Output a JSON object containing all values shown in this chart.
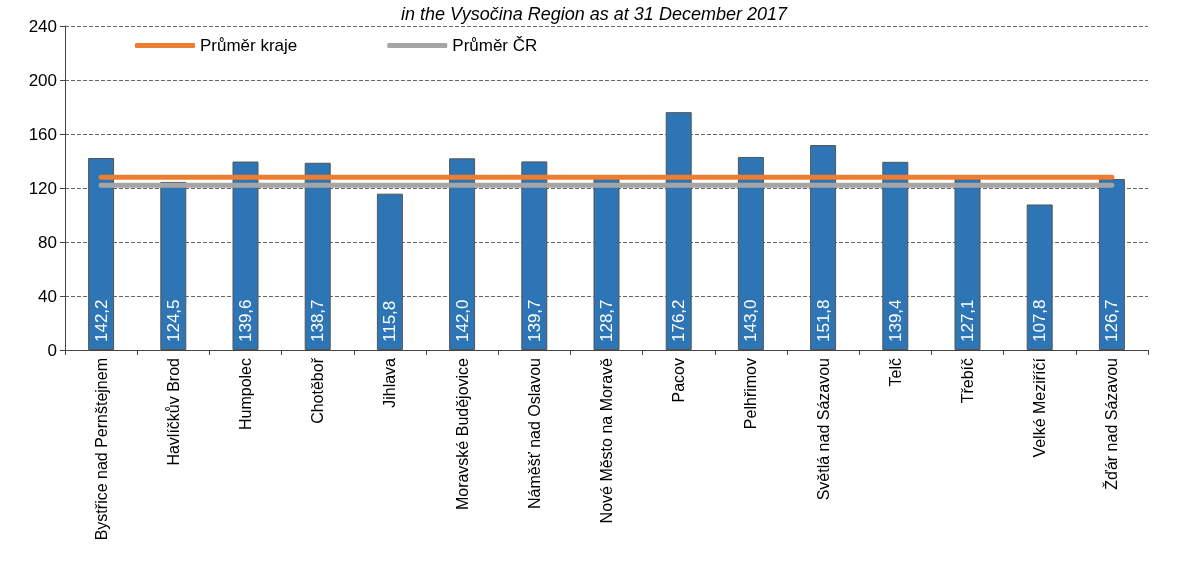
{
  "chart_data": {
    "type": "bar",
    "title": "in the Vysočina Region as at 31 December 2017",
    "categories": [
      "Bystřice nad Pernštejnem",
      "Havlíčkův Brod",
      "Humpolec",
      "Chotěboř",
      "Jihlava",
      "Moravské Budějovice",
      "Náměšť nad Oslavou",
      "Nové Město na Moravě",
      "Pacov",
      "Pelhřimov",
      "Světlá nad Sázavou",
      "Telč",
      "Třebíč",
      "Velké Meziříčí",
      "Žďár nad Sázavou"
    ],
    "series": [
      {
        "color": "#2e75b6",
        "values": [
          142.2,
          124.5,
          139.6,
          138.7,
          115.8,
          142.0,
          139.7,
          128.7,
          176.2,
          143.0,
          151.8,
          139.4,
          127.1,
          107.8,
          126.7
        ],
        "value_labels": [
          "142,2",
          "124,5",
          "139,6",
          "138,7",
          "115,8",
          "142,0",
          "139,7",
          "128,7",
          "176,2",
          "143,0",
          "151,8",
          "139,4",
          "127,1",
          "107,8",
          "126,7"
        ]
      },
      {
        "type": "line",
        "name": "Průměr kraje",
        "color": "#ed7d31",
        "values": [
          128,
          128,
          128,
          128,
          128,
          128,
          128,
          128,
          128,
          128,
          128,
          128,
          128,
          128,
          128
        ]
      },
      {
        "type": "line",
        "name": "Průměr ČR",
        "color": "#a5a5a5",
        "values": [
          122,
          122,
          122,
          122,
          122,
          122,
          122,
          122,
          122,
          122,
          122,
          122,
          122,
          122,
          122
        ]
      }
    ],
    "ylim": [
      0,
      240
    ],
    "yticks": [
      0,
      40,
      80,
      120,
      160,
      200,
      240
    ],
    "grid": "y",
    "legend": "top left"
  }
}
